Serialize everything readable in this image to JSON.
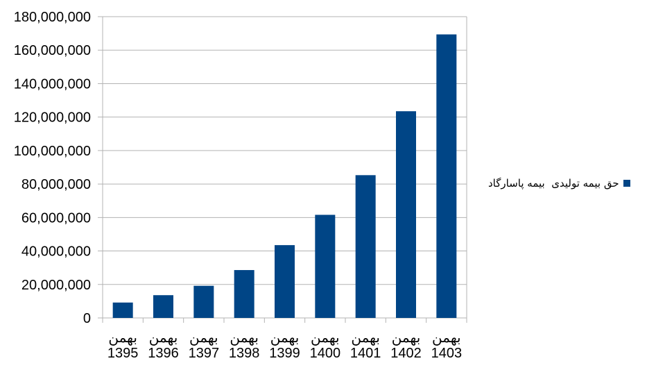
{
  "chart_data": {
    "type": "bar",
    "categories": [
      [
        "بهمن",
        "1395"
      ],
      [
        "بهمن",
        "1396"
      ],
      [
        "بهمن",
        "1397"
      ],
      [
        "بهمن",
        "1398"
      ],
      [
        "بهمن",
        "1399"
      ],
      [
        "بهمن",
        "1400"
      ],
      [
        "بهمن",
        "1401"
      ],
      [
        "بهمن",
        "1402"
      ],
      [
        "بهمن",
        "1403"
      ]
    ],
    "series": [
      {
        "name": "حق بیمه تولیدی  بیمه پاسارگاد",
        "color": "#004586",
        "values": [
          9200000,
          13600000,
          19200000,
          28600000,
          43500000,
          61600000,
          85300000,
          123500000,
          169400000
        ]
      }
    ],
    "yticks": [
      "0",
      "20,000,000",
      "40,000,000",
      "60,000,000",
      "80,000,000",
      "100,000,000",
      "120,000,000",
      "140,000,000",
      "160,000,000",
      "180,000,000"
    ],
    "ylim": [
      0,
      180000000
    ],
    "grid": true,
    "legend_position": "right",
    "title": "",
    "xlabel": "",
    "ylabel": ""
  }
}
